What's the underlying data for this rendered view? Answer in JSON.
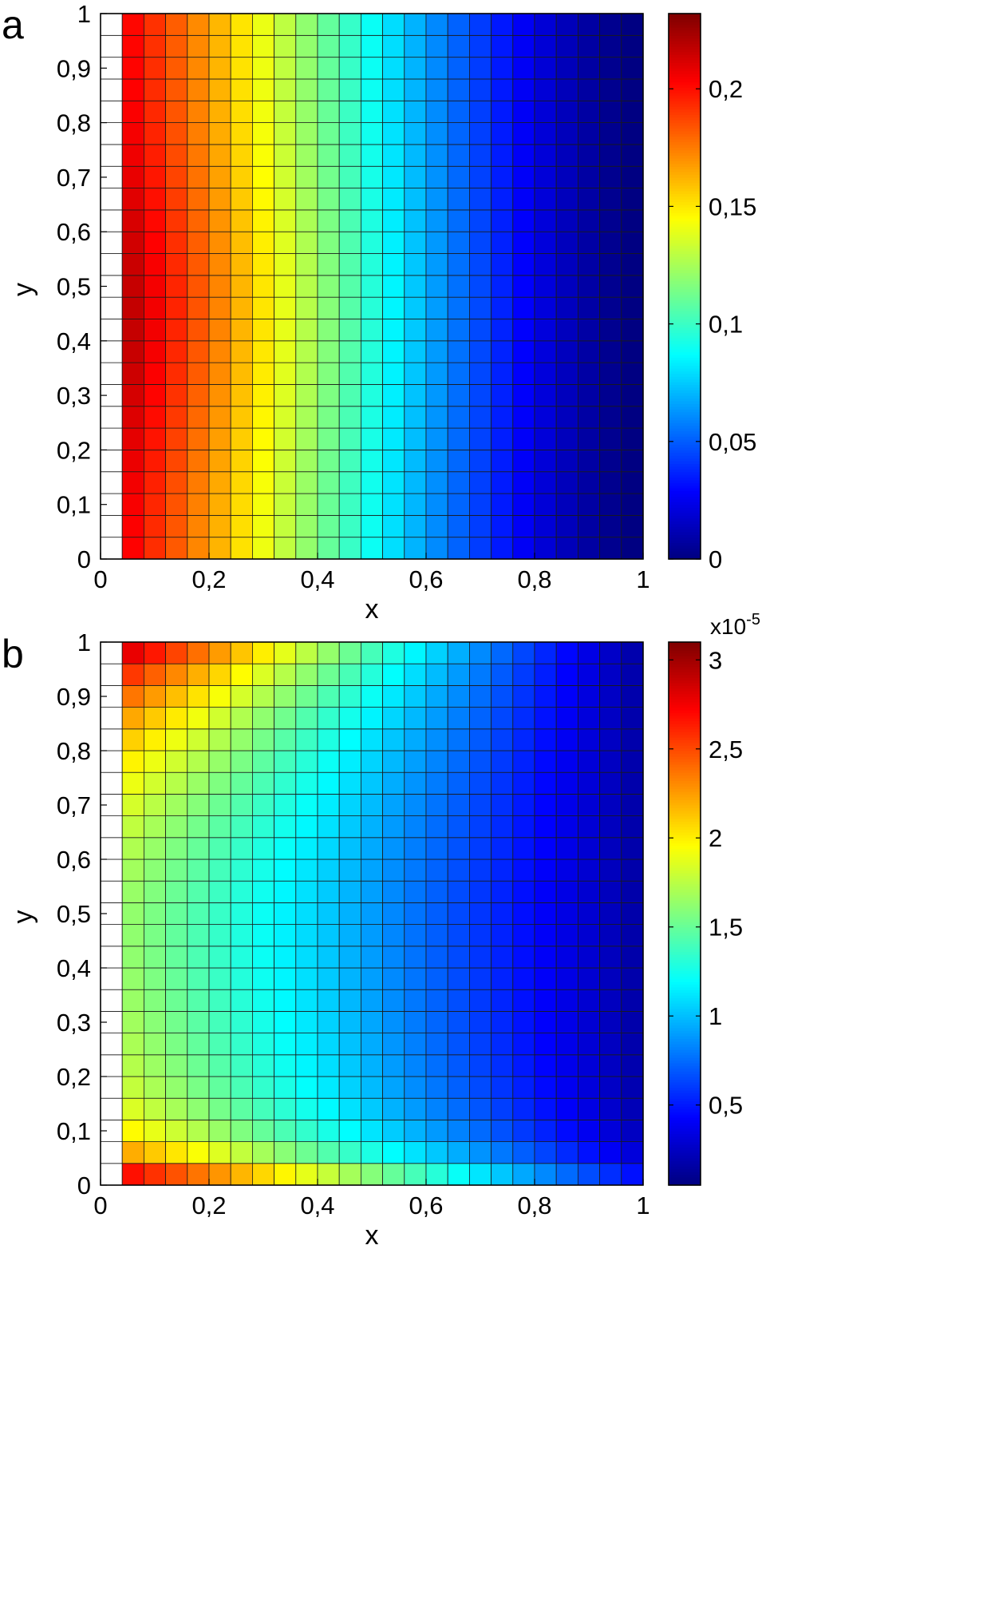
{
  "chart_data": [
    {
      "type": "heatmap",
      "panel_label": "a",
      "xlabel": "x",
      "ylabel": "y",
      "xlim": [
        0,
        1
      ],
      "ylim": [
        0,
        1
      ],
      "x_ticks": [
        "0",
        "0,2",
        "0,4",
        "0,6",
        "0,8",
        "1"
      ],
      "y_ticks": [
        "0",
        "0,1",
        "0,2",
        "0,3",
        "0,4",
        "0,5",
        "0,6",
        "0,7",
        "0,8",
        "0,9",
        "1"
      ],
      "grid": true,
      "grid_cols": 25,
      "grid_rows": 25,
      "first_filled_column": 1,
      "field_description": "value varies mainly with x; max ~0.23 near x=0.1, y=0.45, falling to ~0 at x=1",
      "colorbar": {
        "range": [
          0,
          0.232
        ],
        "ticks": [
          "0",
          "0,05",
          "0,1",
          "0,15",
          "0,2"
        ],
        "tick_values": [
          0,
          0.05,
          0.1,
          0.15,
          0.2
        ],
        "exponent_label": ""
      },
      "colormap": "jet"
    },
    {
      "type": "heatmap",
      "panel_label": "b",
      "xlabel": "x",
      "ylabel": "y",
      "xlim": [
        0,
        1
      ],
      "ylim": [
        0,
        1
      ],
      "x_ticks": [
        "0",
        "0,2",
        "0,4",
        "0,6",
        "0,8",
        "1"
      ],
      "y_ticks": [
        "0",
        "0,1",
        "0,2",
        "0,3",
        "0,4",
        "0,5",
        "0,6",
        "0,7",
        "0,8",
        "0,9",
        "1"
      ],
      "grid": true,
      "grid_cols": 25,
      "grid_rows": 25,
      "first_filled_column": 1,
      "field_description": "max ~3e-5 along the bottom and top-left edges, minimum ~0.1e-5 near x=0.95, y=0.5",
      "colorbar": {
        "range": [
          0.05,
          3.1
        ],
        "ticks": [
          "0,5",
          "1",
          "1,5",
          "2",
          "2,5",
          "3"
        ],
        "tick_values": [
          0.5,
          1,
          1.5,
          2,
          2.5,
          3
        ],
        "exponent_label": "x10",
        "exponent_power": "-5"
      },
      "colormap": "jet"
    }
  ]
}
